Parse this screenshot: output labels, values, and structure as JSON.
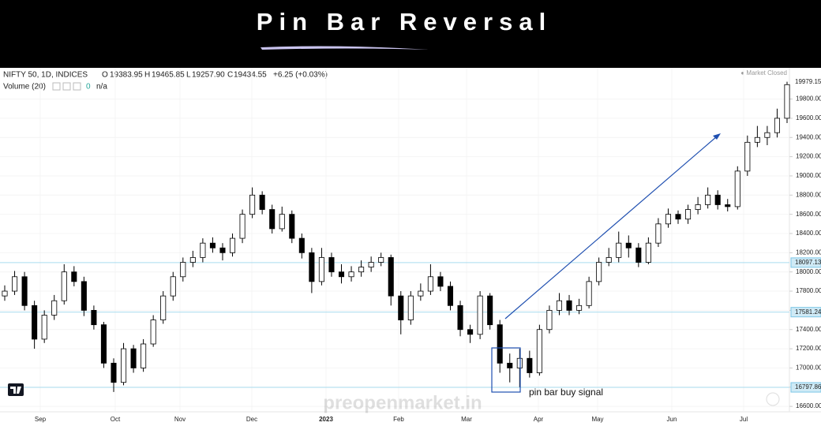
{
  "header": {
    "title": "Pin Bar Reversal"
  },
  "legend": {
    "symbol": "NIFTY 50, 1D, INDICES",
    "o": "O",
    "open": "19383.95",
    "h": "H",
    "high": "19465.85",
    "l": "L",
    "low": "19257.90",
    "c": "C",
    "close": "19434.55",
    "change": "+6.25 (+0.03%)",
    "volume": "Volume (20)",
    "volume_value": "0",
    "volume_na": "n/a",
    "status": "● Market Closed"
  },
  "chart_data": {
    "type": "candlestick",
    "open": [
      17750,
      17800,
      17950,
      17650,
      17300,
      17550,
      17700,
      18000,
      17900,
      17600,
      17450,
      17050,
      16850,
      17200,
      17000,
      17250,
      17500,
      17750,
      17950,
      18100,
      18150,
      18300,
      18250,
      18200,
      18350,
      18600,
      18800,
      18650,
      18450,
      18600,
      18350,
      18200,
      17900,
      18150,
      18000,
      17950,
      18000,
      18050,
      18100,
      18150,
      17750,
      17500,
      17750,
      17800,
      17950,
      17850,
      17650,
      17400,
      17350,
      17750,
      17450,
      17050,
      17000,
      17100,
      16950,
      17400,
      17600,
      17700,
      17600,
      17650,
      17900,
      18100,
      18150,
      18300,
      18250,
      18100,
      18300,
      18500,
      18600,
      18550,
      18650,
      18700,
      18800,
      18700,
      18680,
      19050,
      19350,
      19400,
      19450,
      19600
    ],
    "high": [
      17860,
      18010,
      18000,
      17700,
      17600,
      17760,
      18080,
      18060,
      17950,
      17650,
      17480,
      17100,
      17260,
      17240,
      17300,
      17550,
      17800,
      18000,
      18150,
      18220,
      18350,
      18360,
      18300,
      18400,
      18650,
      18880,
      18840,
      18700,
      18680,
      18640,
      18400,
      18250,
      18250,
      18200,
      18080,
      18060,
      18120,
      18160,
      18200,
      18180,
      17800,
      17800,
      17880,
      18080,
      18000,
      17900,
      17700,
      17450,
      17800,
      17780,
      17500,
      17150,
      17200,
      17180,
      17450,
      17650,
      17780,
      17760,
      17720,
      17950,
      18150,
      18250,
      18420,
      18380,
      18300,
      18360,
      18560,
      18660,
      18640,
      18700,
      18780,
      18880,
      18850,
      18760,
      19100,
      19420,
      19520,
      19520,
      19700,
      19980
    ],
    "low": [
      17700,
      17760,
      17600,
      17200,
      17260,
      17500,
      17660,
      17850,
      17540,
      17400,
      17000,
      16750,
      16820,
      16950,
      16960,
      17220,
      17460,
      17700,
      17900,
      18050,
      18100,
      18200,
      18120,
      18160,
      18300,
      18560,
      18600,
      18400,
      18420,
      18300,
      18140,
      17780,
      17860,
      17950,
      17880,
      17900,
      17950,
      18000,
      18060,
      17650,
      17350,
      17450,
      17700,
      17760,
      17800,
      17600,
      17330,
      17260,
      17300,
      17400,
      16950,
      16850,
      16800,
      16900,
      16920,
      17360,
      17550,
      17550,
      17560,
      17620,
      17860,
      18060,
      18100,
      18150,
      18050,
      18080,
      18260,
      18460,
      18500,
      18500,
      18600,
      18660,
      18650,
      18630,
      18650,
      19000,
      19300,
      19320,
      19400,
      19550
    ],
    "close": [
      17800,
      17950,
      17650,
      17300,
      17550,
      17700,
      18000,
      17900,
      17600,
      17450,
      17050,
      16850,
      17200,
      17000,
      17250,
      17500,
      17750,
      17950,
      18100,
      18150,
      18300,
      18250,
      18200,
      18350,
      18600,
      18800,
      18650,
      18450,
      18600,
      18350,
      18200,
      17900,
      18150,
      18000,
      17950,
      18000,
      18050,
      18100,
      18150,
      17750,
      17500,
      17750,
      17800,
      17950,
      17850,
      17650,
      17400,
      17350,
      17750,
      17450,
      17050,
      17000,
      17100,
      16950,
      17400,
      17600,
      17700,
      17600,
      17650,
      17900,
      18100,
      18150,
      18300,
      18250,
      18100,
      18300,
      18500,
      18600,
      18550,
      18650,
      18700,
      18800,
      18700,
      18680,
      19050,
      19350,
      19400,
      19450,
      19600,
      19950
    ],
    "x_labels": [
      "Sep",
      "Oct",
      "Nov",
      "Dec",
      "2023",
      "Feb",
      "Mar",
      "Apr",
      "May",
      "Jun",
      "Jul"
    ],
    "ylim": [
      16560,
      20010
    ],
    "yticks": [
      {
        "value": 16600,
        "label": "16600.00"
      },
      {
        "value": 16800,
        "label": "16800.00"
      },
      {
        "value": 17000,
        "label": "17000.00"
      },
      {
        "value": 17200,
        "label": "17200.00"
      },
      {
        "value": 17400,
        "label": "17400.00"
      },
      {
        "value": 17600,
        "label": "17600.00"
      },
      {
        "value": 17800,
        "label": "17800.00"
      },
      {
        "value": 18000,
        "label": "18000.00"
      },
      {
        "value": 18200,
        "label": "18200.00"
      },
      {
        "value": 18400,
        "label": "18400.00"
      },
      {
        "value": 18600,
        "label": "18600.00"
      },
      {
        "value": 18800,
        "label": "18800.00"
      },
      {
        "value": 19000,
        "label": "19000.00"
      },
      {
        "value": 19200,
        "label": "19200.00"
      },
      {
        "value": 19400,
        "label": "19400.00"
      },
      {
        "value": 19600,
        "label": "19600.00"
      },
      {
        "value": 19800,
        "label": "19800.00"
      }
    ],
    "hlines": [
      18097.13,
      17581.24,
      16797.86
    ],
    "last_price": 19979.15,
    "annotation": "pin bar buy signal",
    "watermark": "preopenmarket.in",
    "grid": true
  }
}
